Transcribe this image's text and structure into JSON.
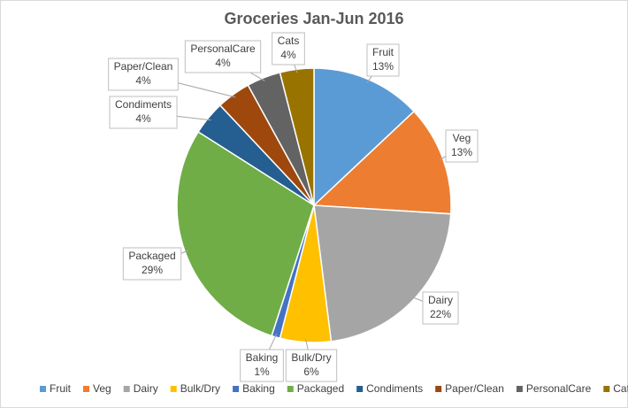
{
  "chart_data": {
    "type": "pie",
    "title": "Groceries Jan-Jun 2016",
    "categories": [
      "Fruit",
      "Veg",
      "Dairy",
      "Bulk/Dry",
      "Baking",
      "Packaged",
      "Condiments",
      "Paper/Clean",
      "PersonalCare",
      "Cats"
    ],
    "values": [
      13,
      13,
      22,
      6,
      1,
      29,
      4,
      4,
      4,
      4
    ],
    "value_labels": [
      "13%",
      "13%",
      "22%",
      "6%",
      "1%",
      "29%",
      "4%",
      "4%",
      "4%",
      "4%"
    ],
    "colors": [
      "#5b9bd5",
      "#ed7d31",
      "#a5a5a5",
      "#ffc000",
      "#4472c4",
      "#70ad47",
      "#255e91",
      "#9e480e",
      "#636363",
      "#997300"
    ],
    "legend": "bottom"
  }
}
